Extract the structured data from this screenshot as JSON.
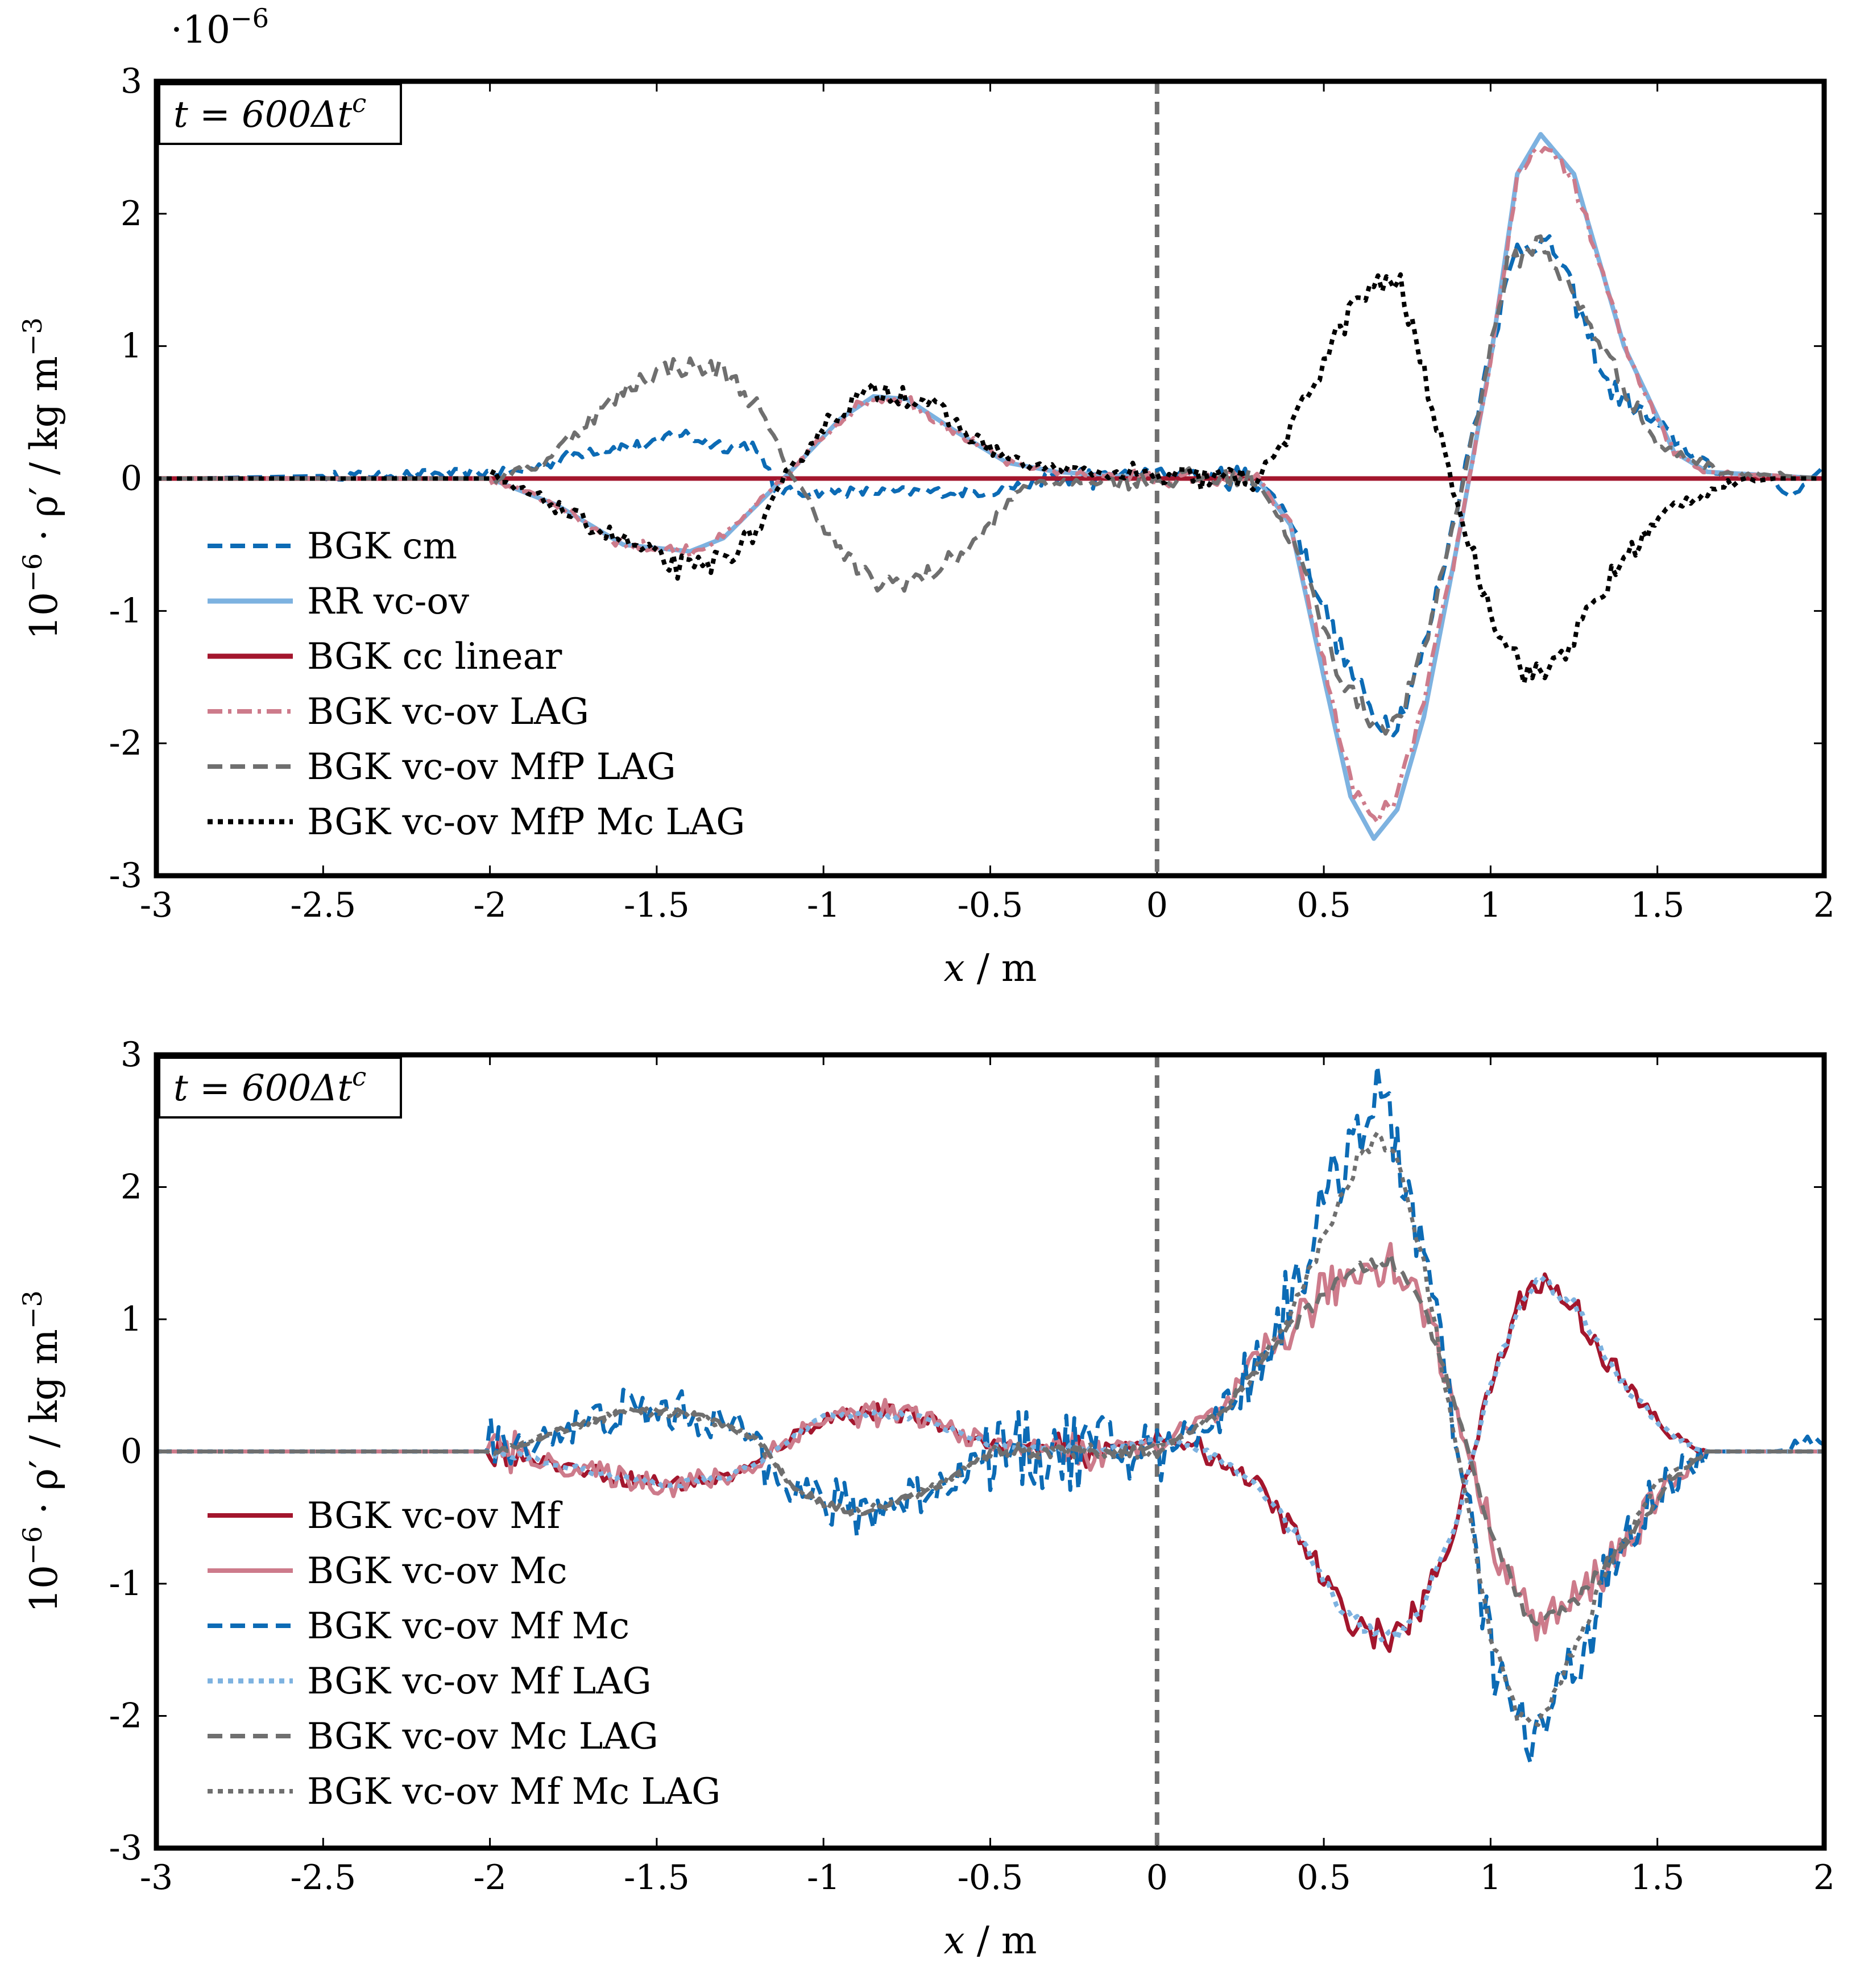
{
  "colors": {
    "blue": "#0C6BB5",
    "lightblue": "#7DB2E0",
    "darkred": "#A3162D",
    "pink": "#CD7B8B",
    "gray": "#6F6F6F",
    "black": "#000000",
    "midline": "#6F6F6F"
  },
  "chart_data": [
    {
      "type": "line",
      "id": "top",
      "annotation": "t = 600Δt^c",
      "exponent_label": "·10^−6",
      "xlabel": "x / m",
      "ylabel": "10^−6 · ρ′ / kg m^−3",
      "xlim": [
        -3,
        2
      ],
      "ylim": [
        -3,
        3
      ],
      "xticks": [
        -3,
        -2.5,
        -2,
        -1.5,
        -1,
        -0.5,
        0,
        0.5,
        1,
        1.5,
        2
      ],
      "xtick_labels": [
        "-3",
        "-2.5",
        "-2",
        "-1.5",
        "-1",
        "-0.5",
        "0",
        "0.5",
        "1",
        "1.5",
        "2"
      ],
      "yticks": [
        -3,
        -2,
        -1,
        0,
        1,
        2,
        3
      ],
      "ytick_labels": [
        "-3",
        "-2",
        "-1",
        "0",
        "1",
        "2",
        "3"
      ],
      "vline_x": 0,
      "series": [
        {
          "name": "BGK cm",
          "color": "blue",
          "dash": "dashed",
          "width": 7,
          "noise": 0.1,
          "x": [
            -3,
            -2.9,
            -1.9,
            -1.7,
            -1.5,
            -1.45,
            -1.3,
            -1.2,
            -1.15,
            -1.05,
            -0.5,
            -0.3,
            0,
            0.3,
            0.4,
            0.55,
            0.65,
            0.72,
            0.8,
            0.9,
            1.0,
            1.08,
            1.13,
            1.2,
            1.35,
            1.6,
            1.7,
            1.85,
            1.9,
            2.0
          ],
          "y": [
            0,
            0,
            0.05,
            0.22,
            0.25,
            0.35,
            0.25,
            0.25,
            -0.1,
            -0.1,
            -0.1,
            0,
            0.05,
            0,
            -0.3,
            -1.3,
            -1.8,
            -1.85,
            -1.3,
            -0.2,
            1.0,
            1.75,
            1.8,
            1.7,
            0.7,
            0.2,
            0,
            0,
            -0.15,
            0.1
          ]
        },
        {
          "name": "RR vc-ov",
          "color": "lightblue",
          "dash": "solid",
          "width": 8,
          "noise": 0,
          "x": [
            -3,
            -2,
            -1.8,
            -1.6,
            -1.4,
            -1.3,
            -1.2,
            -1.1,
            -0.95,
            -0.85,
            -0.75,
            -0.6,
            -0.45,
            -0.3,
            0,
            0.3,
            0.4,
            0.5,
            0.58,
            0.65,
            0.72,
            0.8,
            0.9,
            1.0,
            1.08,
            1.15,
            1.25,
            1.4,
            1.55,
            1.65,
            2.0
          ],
          "y": [
            0,
            0,
            -0.2,
            -0.5,
            -0.55,
            -0.45,
            -0.2,
            0.05,
            0.45,
            0.62,
            0.6,
            0.35,
            0.12,
            0.05,
            0,
            0,
            -0.35,
            -1.5,
            -2.4,
            -2.72,
            -2.5,
            -1.8,
            -0.5,
            0.9,
            2.3,
            2.6,
            2.3,
            1.0,
            0.2,
            0.05,
            0
          ]
        },
        {
          "name": "BGK cc linear",
          "color": "darkred",
          "dash": "solid",
          "width": 8,
          "noise": 0,
          "x": [
            -3,
            2
          ],
          "y": [
            0,
            0
          ]
        },
        {
          "name": "BGK vc-ov LAG",
          "color": "pink",
          "dash": "dashdot",
          "width": 7,
          "noise": 0.06,
          "x": [
            -3,
            -2,
            -1.8,
            -1.6,
            -1.4,
            -1.3,
            -1.2,
            -1.1,
            -0.95,
            -0.85,
            -0.75,
            -0.6,
            -0.45,
            -0.3,
            0,
            0.3,
            0.4,
            0.5,
            0.58,
            0.65,
            0.72,
            0.8,
            0.9,
            1.0,
            1.08,
            1.15,
            1.25,
            1.4,
            1.55,
            1.65,
            2.0
          ],
          "y": [
            0,
            0,
            -0.2,
            -0.5,
            -0.55,
            -0.45,
            -0.2,
            0.05,
            0.45,
            0.62,
            0.6,
            0.35,
            0.12,
            0.05,
            0,
            0,
            -0.35,
            -1.4,
            -2.3,
            -2.6,
            -2.4,
            -1.7,
            -0.5,
            0.9,
            2.25,
            2.52,
            2.25,
            1.0,
            0.2,
            0.05,
            0
          ]
        },
        {
          "name": "BGK vc-ov MfP LAG",
          "color": "gray",
          "dash": "dashed",
          "width": 7,
          "noise": 0.08,
          "x": [
            -3,
            -2,
            -1.85,
            -1.7,
            -1.55,
            -1.45,
            -1.3,
            -1.2,
            -1.1,
            -0.95,
            -0.85,
            -0.7,
            -0.55,
            -0.4,
            0,
            0.3,
            0.42,
            0.55,
            0.65,
            0.72,
            0.8,
            0.92,
            1.05,
            1.15,
            1.3,
            1.5,
            1.7,
            2.0
          ],
          "y": [
            0,
            0,
            0.1,
            0.45,
            0.75,
            0.85,
            0.82,
            0.55,
            0.05,
            -0.55,
            -0.8,
            -0.75,
            -0.5,
            -0.05,
            0,
            0,
            -0.55,
            -1.5,
            -1.85,
            -1.85,
            -1.3,
            0,
            1.6,
            1.8,
            1.15,
            0.25,
            0.05,
            0
          ]
        },
        {
          "name": "BGK vc-ov MfP Mc LAG",
          "color": "black",
          "dash": "dotted",
          "width": 8,
          "noise": 0.1,
          "x": [
            -3,
            -2,
            -1.85,
            -1.7,
            -1.5,
            -1.4,
            -1.3,
            -1.2,
            -1.1,
            -1.0,
            -0.9,
            -0.8,
            -0.7,
            -0.55,
            -0.4,
            0,
            0.3,
            0.4,
            0.5,
            0.6,
            0.7,
            0.73,
            0.8,
            0.9,
            1.0,
            1.1,
            1.15,
            1.25,
            1.4,
            1.55,
            1.7,
            1.85,
            2.0
          ],
          "y": [
            0,
            0,
            -0.15,
            -0.35,
            -0.6,
            -0.7,
            -0.6,
            -0.4,
            0.05,
            0.4,
            0.6,
            0.67,
            0.6,
            0.3,
            0.1,
            0,
            0,
            0.35,
            0.9,
            1.35,
            1.5,
            1.45,
            0.8,
            -0.2,
            -1.0,
            -1.45,
            -1.5,
            -1.2,
            -0.6,
            -0.2,
            -0.05,
            0,
            0
          ]
        }
      ]
    },
    {
      "type": "line",
      "id": "bottom",
      "annotation": "t = 600Δt^c",
      "xlabel": "x / m",
      "ylabel": "10^−6 · ρ′ / kg m^−3",
      "xlim": [
        -3,
        2
      ],
      "ylim": [
        -3,
        3
      ],
      "xticks": [
        -3,
        -2.5,
        -2,
        -1.5,
        -1,
        -0.5,
        0,
        0.5,
        1,
        1.5,
        2
      ],
      "xtick_labels": [
        "-3",
        "-2.5",
        "-2",
        "-1.5",
        "-1",
        "-0.5",
        "0",
        "0.5",
        "1",
        "1.5",
        "2"
      ],
      "yticks": [
        -3,
        -2,
        -1,
        0,
        1,
        2,
        3
      ],
      "ytick_labels": [
        "-3",
        "-2",
        "-1",
        "0",
        "1",
        "2",
        "3"
      ],
      "vline_x": 0,
      "series": [
        {
          "name": "BGK vc-ov Mf",
          "color": "darkred",
          "dash": "solid",
          "width": 7,
          "noise": 0.12,
          "x": [
            -3,
            -1.95,
            -1.8,
            -1.6,
            -1.45,
            -1.3,
            -1.2,
            -1.1,
            -1.0,
            -0.85,
            -0.7,
            -0.5,
            -0.2,
            0,
            0.15,
            0.3,
            0.45,
            0.55,
            0.65,
            0.72,
            0.8,
            0.9,
            1.0,
            1.1,
            1.15,
            1.25,
            1.4,
            1.55,
            1.65,
            2.0
          ],
          "y": [
            0,
            0,
            -0.1,
            -0.2,
            -0.25,
            -0.2,
            -0.1,
            0.1,
            0.25,
            0.3,
            0.25,
            0.05,
            0,
            0.1,
            0,
            -0.25,
            -0.75,
            -1.2,
            -1.38,
            -1.4,
            -1.15,
            -0.5,
            0.5,
            1.2,
            1.3,
            1.1,
            0.5,
            0.1,
            0,
            0
          ]
        },
        {
          "name": "BGK vc-ov Mc",
          "color": "pink",
          "dash": "solid",
          "width": 7,
          "noise": 0.18,
          "x": [
            -3,
            -1.95,
            -1.8,
            -1.6,
            -1.45,
            -1.3,
            -1.2,
            -1.1,
            -1.0,
            -0.85,
            -0.7,
            -0.5,
            -0.2,
            0,
            0.2,
            0.35,
            0.5,
            0.62,
            0.7,
            0.8,
            0.9,
            1.0,
            1.1,
            1.15,
            1.25,
            1.4,
            1.55,
            1.65,
            2.0
          ],
          "y": [
            0,
            0,
            -0.1,
            -0.2,
            -0.25,
            -0.2,
            -0.1,
            0.1,
            0.25,
            0.3,
            0.25,
            0.05,
            0,
            0.05,
            0.3,
            0.8,
            1.2,
            1.4,
            1.45,
            1.1,
            0.3,
            -0.6,
            -1.2,
            -1.3,
            -1.15,
            -0.7,
            -0.2,
            0,
            0
          ]
        },
        {
          "name": "BGK vc-ov Mf Mc",
          "color": "blue",
          "dash": "dashed",
          "width": 7,
          "noise": 0.3,
          "x": [
            -3,
            -1.95,
            -1.8,
            -1.6,
            -1.45,
            -1.35,
            -1.2,
            -1.1,
            -1.0,
            -0.9,
            -0.8,
            -0.65,
            -0.5,
            -0.2,
            0,
            0.2,
            0.35,
            0.5,
            0.6,
            0.66,
            0.72,
            0.8,
            0.9,
            1.0,
            1.08,
            1.12,
            1.2,
            1.35,
            1.5,
            1.65,
            1.85,
            2.0
          ],
          "y": [
            0,
            0,
            0.15,
            0.3,
            0.3,
            0.25,
            0.1,
            -0.25,
            -0.4,
            -0.45,
            -0.4,
            -0.25,
            0,
            0,
            0,
            0.3,
            0.9,
            1.8,
            2.5,
            2.65,
            2.3,
            1.5,
            0,
            -1.5,
            -2.1,
            -2.2,
            -1.9,
            -1.0,
            -0.3,
            0,
            0,
            0.05
          ]
        },
        {
          "name": "BGK vc-ov Mf LAG",
          "color": "lightblue",
          "dash": "dotted",
          "width": 8,
          "noise": 0.05,
          "x": [
            -3,
            -1.95,
            -1.8,
            -1.6,
            -1.45,
            -1.3,
            -1.2,
            -1.1,
            -1.0,
            -0.85,
            -0.7,
            -0.5,
            -0.2,
            0,
            0.15,
            0.3,
            0.45,
            0.55,
            0.65,
            0.72,
            0.8,
            0.9,
            1.0,
            1.1,
            1.15,
            1.25,
            1.4,
            1.55,
            1.65,
            2.0
          ],
          "y": [
            0,
            0,
            -0.1,
            -0.2,
            -0.25,
            -0.2,
            -0.1,
            0.1,
            0.25,
            0.3,
            0.25,
            0.05,
            0,
            0.1,
            0,
            -0.25,
            -0.75,
            -1.2,
            -1.38,
            -1.4,
            -1.15,
            -0.5,
            0.5,
            1.2,
            1.3,
            1.1,
            0.5,
            0.1,
            0,
            0
          ]
        },
        {
          "name": "BGK vc-ov Mc LAG",
          "color": "gray",
          "dash": "dashed",
          "width": 7,
          "noise": 0.05,
          "x": [
            -3,
            -1.95,
            -1.8,
            -1.6,
            -1.45,
            -1.35,
            -1.2,
            -1.1,
            -1.0,
            -0.9,
            -0.8,
            -0.65,
            -0.5,
            -0.2,
            0,
            0.2,
            0.35,
            0.5,
            0.62,
            0.7,
            0.8,
            0.9,
            1.0,
            1.1,
            1.15,
            1.25,
            1.4,
            1.55,
            1.65,
            2.0
          ],
          "y": [
            0,
            0,
            0.15,
            0.3,
            0.3,
            0.25,
            0.1,
            -0.25,
            -0.4,
            -0.45,
            -0.4,
            -0.25,
            0,
            0,
            0,
            0.3,
            0.8,
            1.2,
            1.4,
            1.45,
            1.1,
            0.3,
            -0.6,
            -1.2,
            -1.3,
            -1.15,
            -0.7,
            -0.2,
            0,
            0
          ]
        },
        {
          "name": "BGK vc-ov Mf Mc LAG",
          "color": "gray",
          "dash": "dotted",
          "width": 7,
          "noise": 0.06,
          "x": [
            -3,
            -1.95,
            -1.8,
            -1.6,
            -1.45,
            -1.35,
            -1.2,
            -1.1,
            -1.0,
            -0.9,
            -0.8,
            -0.65,
            -0.5,
            -0.2,
            0,
            0.2,
            0.35,
            0.5,
            0.6,
            0.66,
            0.72,
            0.8,
            0.9,
            1.0,
            1.08,
            1.12,
            1.2,
            1.35,
            1.5,
            1.65,
            2.0
          ],
          "y": [
            0,
            0,
            0.15,
            0.3,
            0.3,
            0.25,
            0.1,
            -0.25,
            -0.4,
            -0.45,
            -0.4,
            -0.25,
            0,
            0,
            0,
            0.3,
            0.8,
            1.6,
            2.2,
            2.4,
            2.2,
            1.4,
            0,
            -1.4,
            -2.0,
            -2.1,
            -1.8,
            -0.9,
            -0.25,
            0,
            0
          ]
        }
      ]
    }
  ]
}
